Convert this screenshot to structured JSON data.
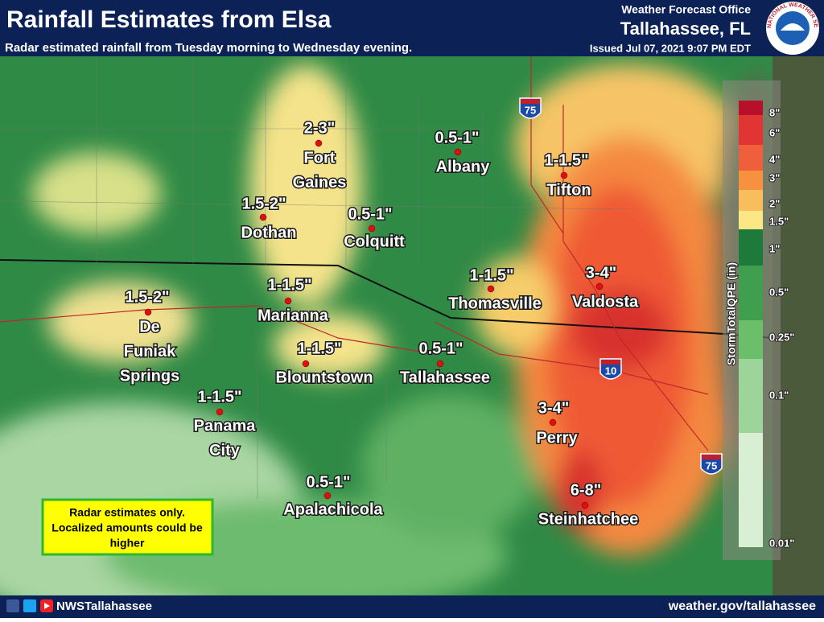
{
  "header": {
    "title": "Rainfall Estimates from Elsa",
    "subtitle": "Radar estimated rainfall from Tuesday morning to Wednesday evening.",
    "office": "Weather Forecast Office",
    "location": "Tallahassee, FL",
    "issued": "Issued Jul 07, 2021 9:07 PM EDT",
    "logo": "NATIONAL WEATHER SERVICE"
  },
  "locations": [
    {
      "amount": "2-3\"",
      "name": [
        "Fort",
        "Gaines"
      ]
    },
    {
      "amount": "0.5-1\"",
      "name": [
        "Albany"
      ]
    },
    {
      "amount": "1-1.5\"",
      "name": [
        "Tifton"
      ]
    },
    {
      "amount": "1.5-2\"",
      "name": [
        "Dothan"
      ]
    },
    {
      "amount": "0.5-1\"",
      "name": [
        "Colquitt"
      ]
    },
    {
      "amount": "1-1.5\"",
      "name": [
        "Thomasville"
      ]
    },
    {
      "amount": "3-4\"",
      "name": [
        "Valdosta"
      ]
    },
    {
      "amount": "1-1.5\"",
      "name": [
        "Marianna"
      ]
    },
    {
      "amount": "1.5-2\"",
      "name": [
        "De",
        "Funiak",
        "Springs"
      ]
    },
    {
      "amount": "1-1.5\"",
      "name": [
        "Blountstown"
      ]
    },
    {
      "amount": "0.5-1\"",
      "name": [
        "Tallahassee"
      ]
    },
    {
      "amount": "1-1.5\"",
      "name": [
        "Panama",
        "City"
      ]
    },
    {
      "amount": "3-4\"",
      "name": [
        "Perry"
      ]
    },
    {
      "amount": "0.5-1\"",
      "name": [
        "Apalachicola"
      ]
    },
    {
      "amount": "6-8\"",
      "name": [
        "Steinhatchee"
      ]
    }
  ],
  "highways": [
    "75",
    "10",
    "75"
  ],
  "legend": {
    "title": "StormTotalQPE (in)",
    "labels": [
      "8\"",
      "6\"",
      "4\"",
      "3\"",
      "2\"",
      "1.5\"",
      "1\"",
      "0.5\"",
      "0.25\"",
      "0.1\"",
      "0.01\""
    ]
  },
  "note": [
    "Radar estimates only.",
    "Localized amounts could be",
    "higher"
  ],
  "footer": {
    "social": "NWSTallahassee",
    "website": "weather.gov/tallahassee"
  }
}
